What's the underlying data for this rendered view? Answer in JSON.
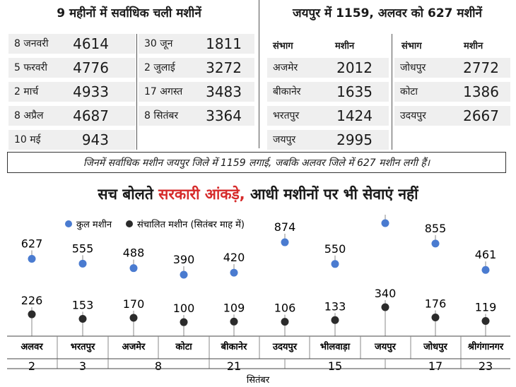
{
  "colors": {
    "total": "#4a7bd0",
    "operational": "#2b2b2b",
    "highlight": "#d62b2b",
    "row_bg": "#efefef"
  },
  "monthly": {
    "title": "9 महीनों में सर्वाधिक चली मशीनें",
    "left": [
      {
        "month": "8 जनवरी",
        "value": "4614"
      },
      {
        "month": "5 फरवरी",
        "value": "4776"
      },
      {
        "month": "2 मार्च",
        "value": "4933"
      },
      {
        "month": "8 अप्रैल",
        "value": "4687"
      },
      {
        "month": "10 मई",
        "value": "943"
      }
    ],
    "right": [
      {
        "month": "30 जून",
        "value": "1811"
      },
      {
        "month": "2 जुलाई",
        "value": "3272"
      },
      {
        "month": "17 अगस्त",
        "value": "3483"
      },
      {
        "month": "8 सितंबर",
        "value": "3364"
      }
    ]
  },
  "divisions": {
    "title": "जयपुर में 1159, अलवर को 627 मशीनें",
    "col_division": "संभाग",
    "col_machines": "मशीन",
    "left": [
      {
        "name": "अजमेर",
        "value": "2012"
      },
      {
        "name": "बीकानेर",
        "value": "1635"
      },
      {
        "name": "भरतपुर",
        "value": "1424"
      },
      {
        "name": "जयपुर",
        "value": "2995"
      }
    ],
    "right": [
      {
        "name": "जोधपुर",
        "value": "2772"
      },
      {
        "name": "कोटा",
        "value": "1386"
      },
      {
        "name": "उदयपुर",
        "value": "2667"
      }
    ]
  },
  "note": "जिनमें सर्वाधिक मशीन जयपुर जिले में 1159 लगाई, जबकि अलवर जिले में 627 मशीन लगी हैं।",
  "headline": {
    "part1": "सच बोलते",
    "highlight": "सरकारी आंकड़े,",
    "part2": "आधी मशीनों पर भी सेवाएं नहीं"
  },
  "chart_data": {
    "type": "scatter",
    "title": "सच बोलते सरकारी आंकड़े, आधी मशीनों पर भी सेवाएं नहीं",
    "legend_position": "top-left",
    "series": [
      {
        "name": "कुल मशीन",
        "values": [
          627,
          555,
          488,
          390,
          420,
          874,
          550,
          1159,
          855,
          461
        ]
      },
      {
        "name": "संचालित मशीन (सितंबर माह में)",
        "values": [
          226,
          153,
          170,
          100,
          109,
          106,
          133,
          340,
          176,
          119
        ]
      }
    ],
    "categories": [
      "अलवर",
      "भरतपुर",
      "अजमेर",
      "कोटा",
      "बीकानेर",
      "उदयपुर",
      "भीलवाड़ा",
      "जयपुर",
      "जोधपुर",
      "श्रीगंगानगर"
    ],
    "dates": [
      "2",
      "3",
      "8",
      "21",
      "15",
      "17",
      "23"
    ],
    "xlabel": "सितंबर",
    "ylim": [
      0,
      1200
    ]
  }
}
